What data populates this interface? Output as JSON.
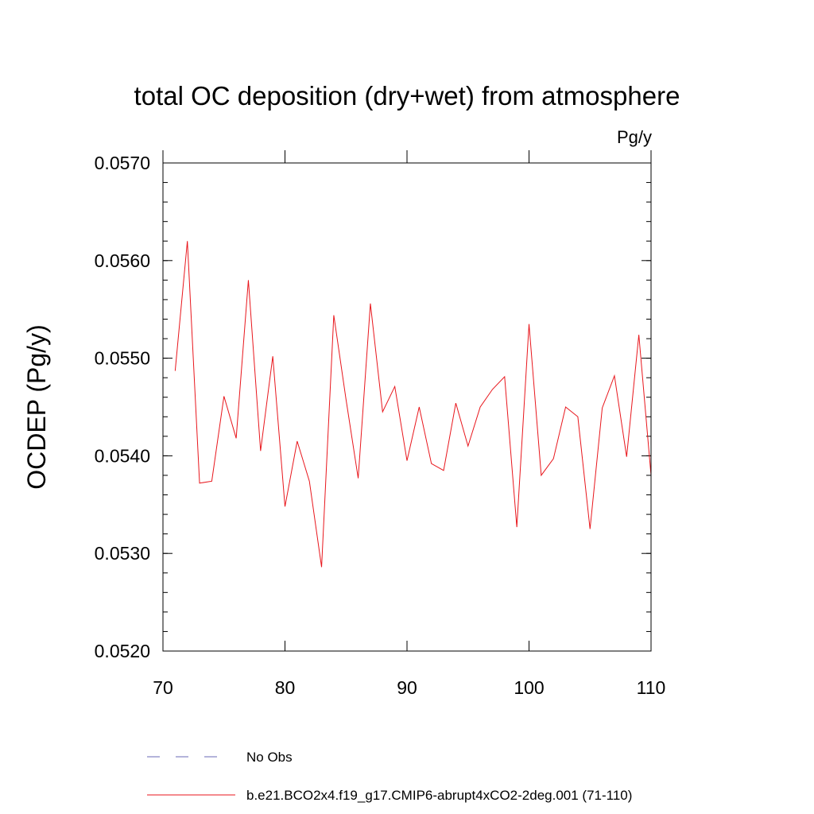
{
  "chart_data": {
    "type": "line",
    "title": "total OC deposition (dry+wet) from atmosphere",
    "units": "Pg/y",
    "xlabel": "",
    "ylabel": "OCDEP  (Pg/y)",
    "xlim": [
      70,
      110
    ],
    "ylim": [
      0.052,
      0.057
    ],
    "x_ticks": [
      "70",
      "80",
      "90",
      "100",
      "110"
    ],
    "y_ticks": [
      "0.0520",
      "0.0530",
      "0.0540",
      "0.0550",
      "0.0560",
      "0.0570"
    ],
    "grid": false,
    "legend_position": "bottom",
    "series": [
      {
        "name": "b.e21.BCO2x4.f19_g17.CMIP6-abrupt4xCO2-2deg.001 (71-110)",
        "color": "#e8161c",
        "dash": "solid",
        "x": [
          71,
          72,
          73,
          74,
          75,
          76,
          77,
          78,
          79,
          80,
          81,
          82,
          83,
          84,
          85,
          86,
          87,
          88,
          89,
          90,
          91,
          92,
          93,
          94,
          95,
          96,
          97,
          98,
          99,
          100,
          101,
          102,
          103,
          104,
          105,
          106,
          107,
          108,
          109,
          110
        ],
        "values": [
          0.05487,
          0.0562,
          0.05372,
          0.05374,
          0.05461,
          0.05418,
          0.0558,
          0.05405,
          0.05502,
          0.05348,
          0.05415,
          0.05374,
          0.05286,
          0.05544,
          0.05458,
          0.05377,
          0.05556,
          0.05445,
          0.05471,
          0.05395,
          0.0545,
          0.05392,
          0.05385,
          0.05454,
          0.0541,
          0.0545,
          0.05468,
          0.05481,
          0.05327,
          0.05535,
          0.0538,
          0.05397,
          0.0545,
          0.0544,
          0.05325,
          0.05449,
          0.05482,
          0.05399,
          0.05524,
          0.0538
        ]
      },
      {
        "name": "No Obs",
        "color": "#6a6ab4",
        "dash": "dashed",
        "x": [],
        "values": []
      }
    ]
  }
}
